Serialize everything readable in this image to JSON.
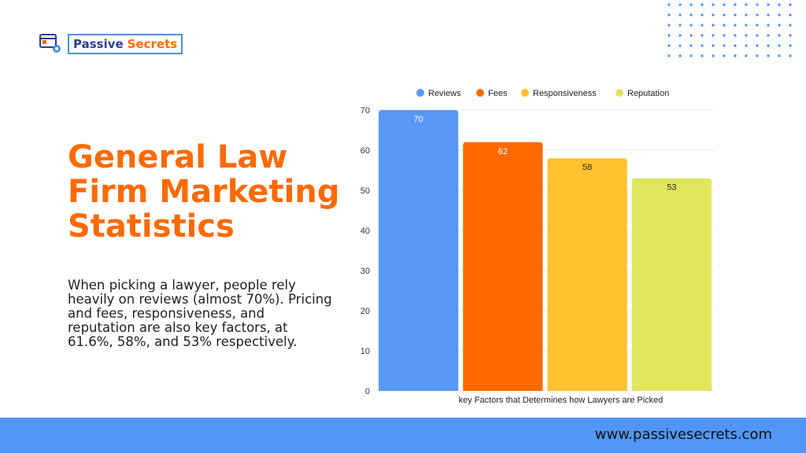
{
  "logo": {
    "word1": "Passive",
    "word2": "Secrets"
  },
  "title": "General Law Firm Marketing Statistics",
  "description": "When picking a lawyer, people rely heavily on reviews (almost 70%). Pricing and fees, responsiveness, and reputation are also key factors, at 61.6%, 58%, and 53% respectively.",
  "footer": {
    "url": "www.passivesecrets.com"
  },
  "colors": {
    "accent": "#ff6a00",
    "footer": "#5196f7",
    "dots": "#4a8ff0"
  },
  "chart_data": {
    "type": "bar",
    "xlabel": "key Factors that Determines how Lawyers are Picked",
    "ylim": [
      0,
      70
    ],
    "yticks": [
      0,
      10,
      20,
      30,
      40,
      50,
      60,
      70
    ],
    "grid": true,
    "legend_position": "top",
    "series": [
      {
        "name": "Reviews",
        "value": 70,
        "color": "#5898f8"
      },
      {
        "name": "Fees",
        "value": 62,
        "color": "#ff6a00"
      },
      {
        "name": "Responsiveness",
        "value": 58,
        "color": "#ffc22e"
      },
      {
        "name": "Reputation",
        "value": 53,
        "color": "#e0e65c"
      }
    ]
  }
}
